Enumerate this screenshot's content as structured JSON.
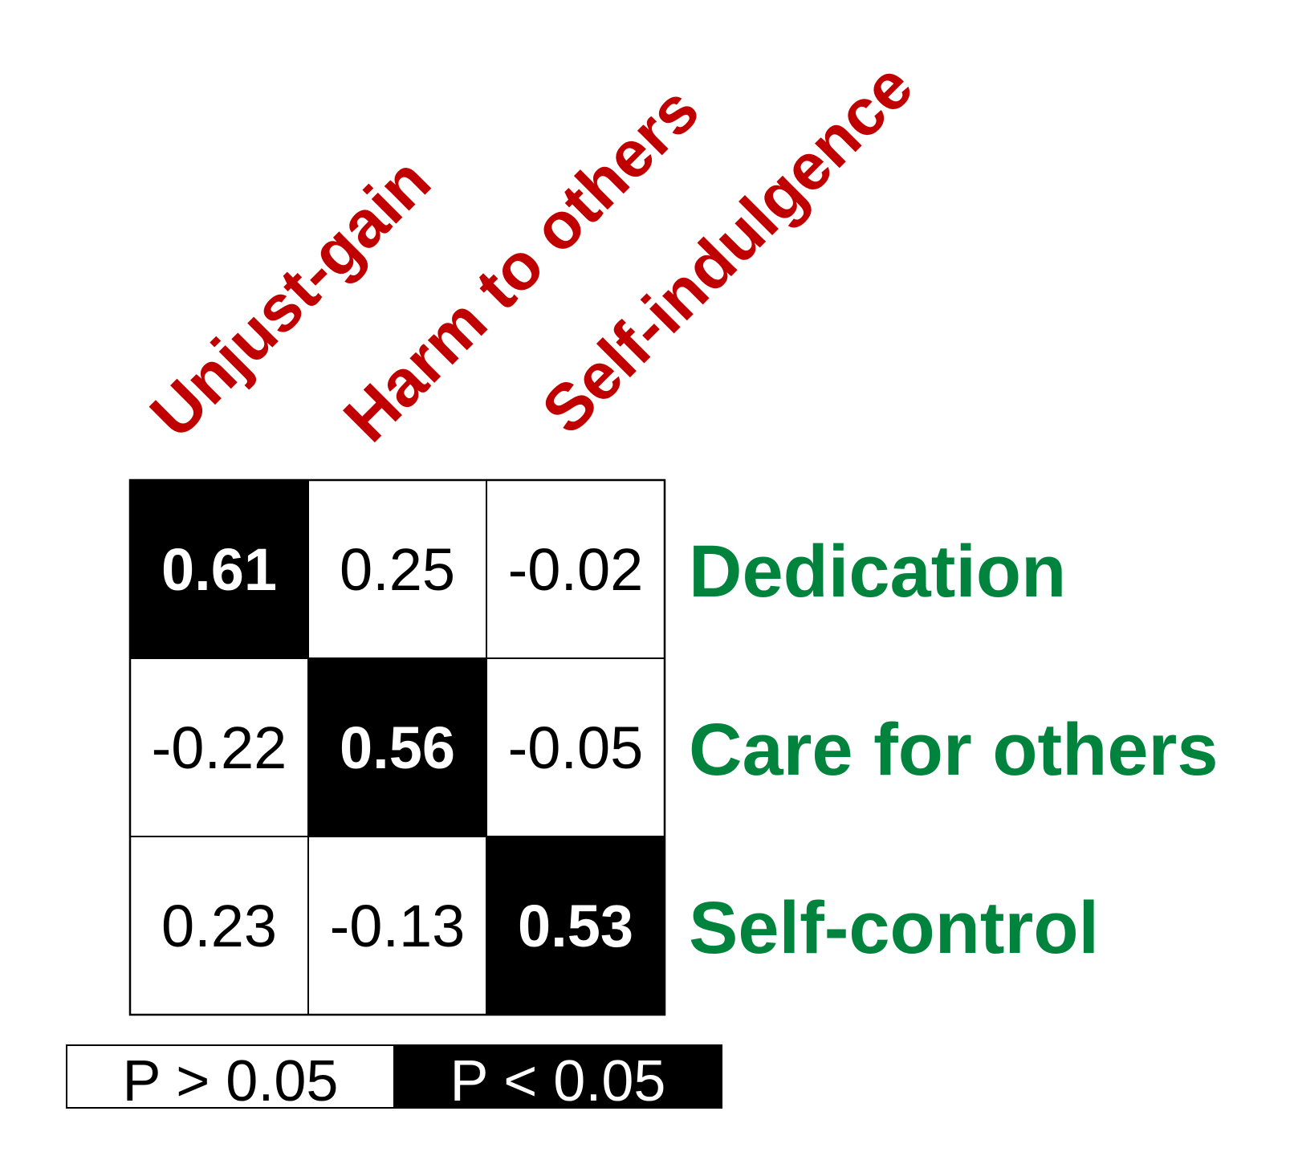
{
  "chart_data": {
    "type": "heatmap",
    "title": "",
    "columns": [
      "Unjust-gain",
      "Harm to others",
      "Self-indulgence"
    ],
    "rows": [
      "Dedication",
      "Care for others",
      "Self-control"
    ],
    "values": [
      [
        "0.61",
        "0.25",
        "-0.02"
      ],
      [
        "-0.22",
        "0.56",
        "-0.05"
      ],
      [
        "0.23",
        "-0.13",
        "0.53"
      ]
    ],
    "significant": [
      [
        true,
        false,
        false
      ],
      [
        false,
        true,
        false
      ],
      [
        false,
        false,
        true
      ]
    ],
    "legend": [
      {
        "label": "P > 0.05",
        "fill": "#ffffff",
        "text_color": "#000000"
      },
      {
        "label": "P < 0.05",
        "fill": "#000000",
        "text_color": "#ffffff"
      }
    ],
    "colors": {
      "column_label": "#c00000",
      "row_label": "#00843d",
      "significant_fill": "#000000",
      "nonsignificant_fill": "#ffffff",
      "significant_text": "#ffffff",
      "nonsignificant_text": "#000000",
      "grid_line": "#000000"
    }
  }
}
